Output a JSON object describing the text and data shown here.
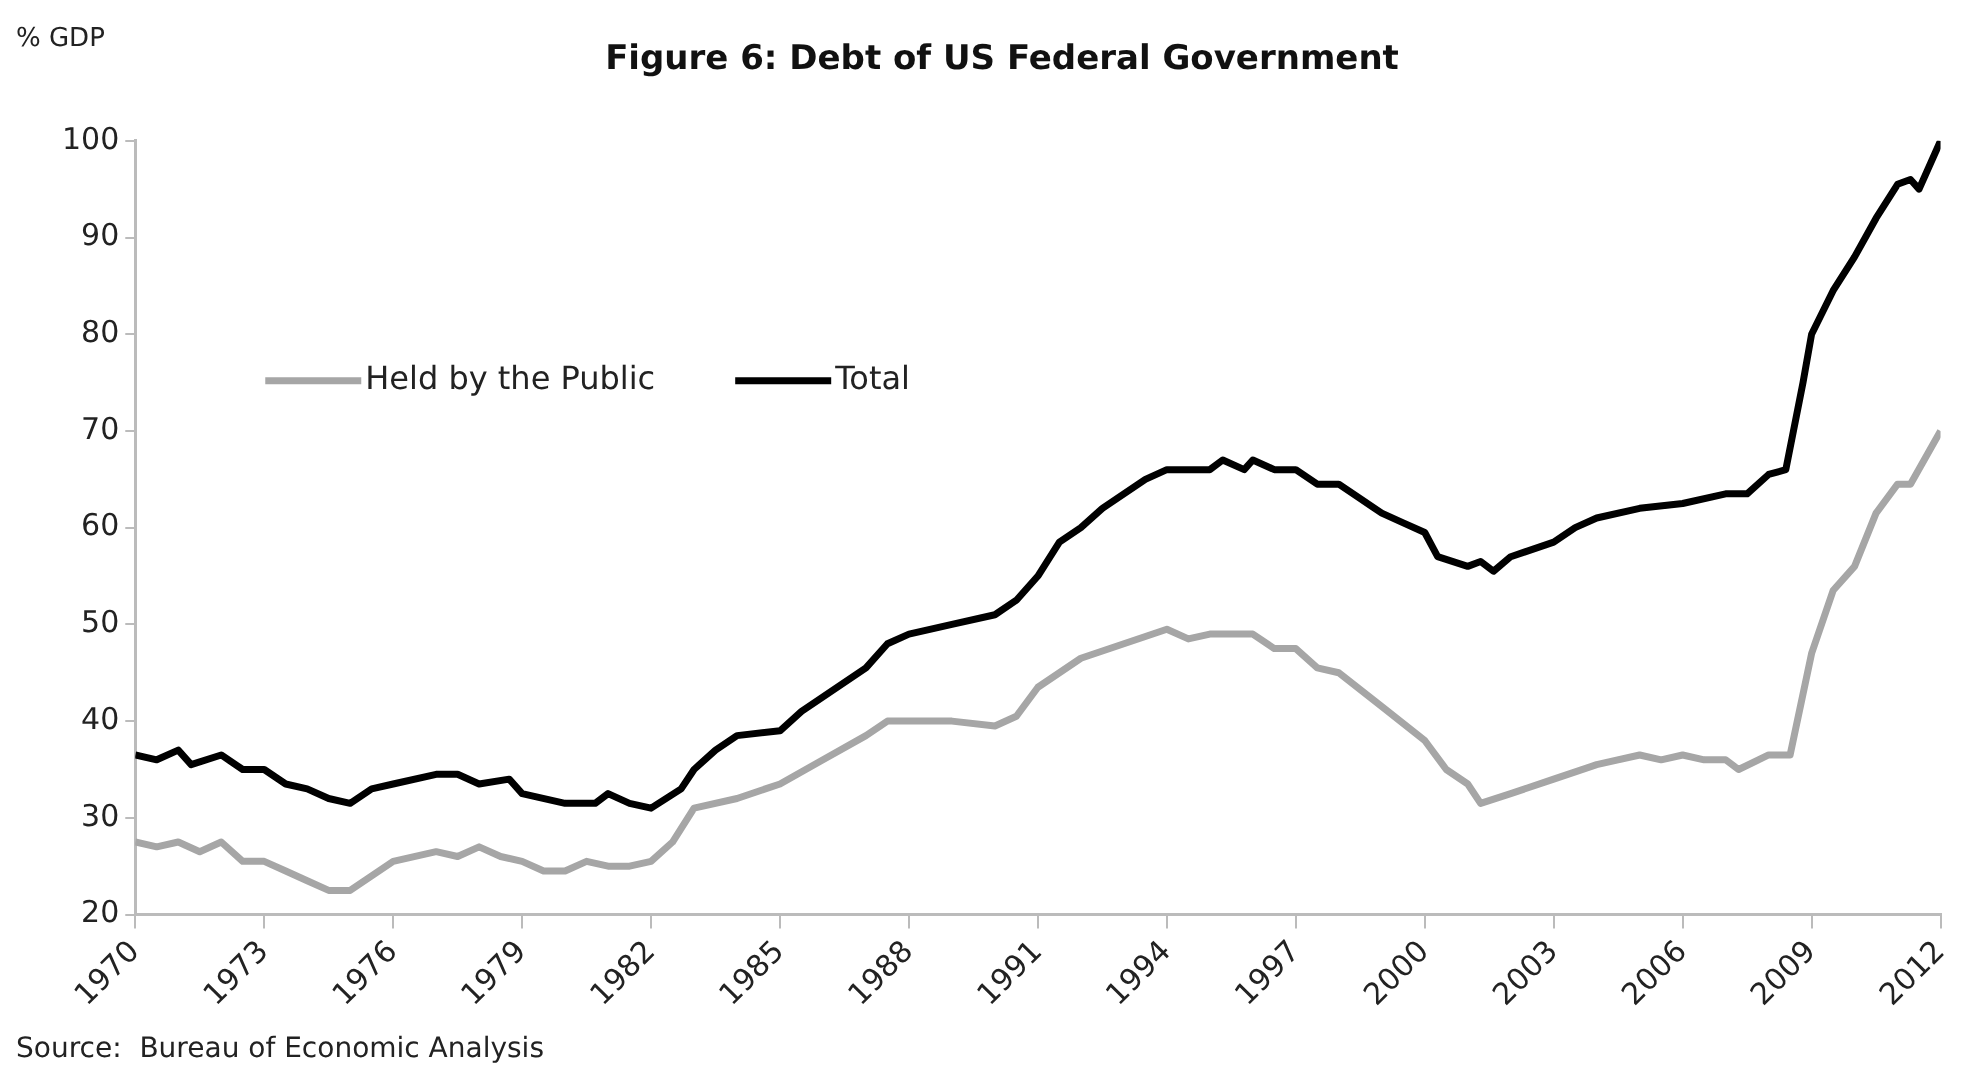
{
  "chart_data": {
    "type": "line",
    "title": "Figure 6: Debt of US Federal Government",
    "ylabel": "% GDP",
    "annotations": [
      "Source:  Bureau of Economic Analysis"
    ],
    "xlim": [
      1970,
      2012
    ],
    "xticks": [
      1970,
      1973,
      1976,
      1979,
      1982,
      1985,
      1988,
      1991,
      1994,
      1997,
      2000,
      2003,
      2006,
      2009,
      2012
    ],
    "ylim": [
      20,
      100
    ],
    "yticks": [
      20,
      30,
      40,
      50,
      60,
      70,
      80,
      90,
      100
    ],
    "grid": false,
    "legend": "top left",
    "marker": "none",
    "line_style": "solid",
    "series": [
      {
        "name": "Held by the Public",
        "color": "#a6a6a6",
        "x": [
          1970,
          1970.5,
          1971,
          1971.5,
          1972,
          1972.5,
          1973,
          1973.5,
          1974,
          1974.5,
          1975,
          1975.5,
          1976,
          1977,
          1977.5,
          1978,
          1978.5,
          1979,
          1979.5,
          1980,
          1980.5,
          1981,
          1981.5,
          1982,
          1982.5,
          1983,
          1984,
          1985,
          1986,
          1987,
          1987.5,
          1988,
          1989,
          1990,
          1990.5,
          1991,
          1992,
          1993,
          1994,
          1994.5,
          1995,
          1996,
          1996.5,
          1997,
          1997.5,
          1998,
          1999,
          2000,
          2000.5,
          2001,
          2001.3,
          2002,
          2003,
          2004,
          2005,
          2005.5,
          2006,
          2006.5,
          2007,
          2007.3,
          2008,
          2008.5,
          2009,
          2009.5,
          2010,
          2010.5,
          2011,
          2011.3,
          2012
        ],
        "values": [
          27.5,
          27,
          27.5,
          26.5,
          27.5,
          25.5,
          25.5,
          24.5,
          23.5,
          22.5,
          22.5,
          24,
          25.5,
          26.5,
          26,
          27,
          26,
          25.5,
          24.5,
          24.5,
          25.5,
          25,
          25,
          25.5,
          27.5,
          31,
          32,
          33.5,
          36,
          38.5,
          40,
          40,
          40,
          39.5,
          40.5,
          43.5,
          46.5,
          48,
          49.5,
          48.5,
          49,
          49,
          47.5,
          47.5,
          45.5,
          45,
          41.5,
          38,
          35,
          33.5,
          31.5,
          32.5,
          34,
          35.5,
          36.5,
          36,
          36.5,
          36,
          36,
          35,
          36.5,
          36.5,
          47,
          53.5,
          56,
          61.5,
          64.5,
          64.5,
          70
        ]
      },
      {
        "name": "Total",
        "color": "#000000",
        "x": [
          1970,
          1970.5,
          1971,
          1971.3,
          1972,
          1972.5,
          1973,
          1973.5,
          1974,
          1974.5,
          1975,
          1975.5,
          1976,
          1977,
          1977.5,
          1978,
          1978.7,
          1979,
          1980,
          1980.7,
          1981,
          1981.5,
          1982,
          1982.7,
          1983,
          1983.5,
          1984,
          1985,
          1985.5,
          1986,
          1987,
          1987.5,
          1988,
          1989,
          1990,
          1990.5,
          1991,
          1991.5,
          1992,
          1992.5,
          1993,
          1993.5,
          1994,
          1995,
          1995.3,
          1995.8,
          1996,
          1996.5,
          1997,
          1997.5,
          1998,
          1998.5,
          1999,
          1999.5,
          2000,
          2000.3,
          2001,
          2001.3,
          2001.6,
          2002,
          2003,
          2003.5,
          2004,
          2005,
          2006,
          2007,
          2007.5,
          2008,
          2008.4,
          2008.8,
          2009,
          2009.5,
          2010,
          2010.5,
          2011,
          2011.3,
          2011.5,
          2012
        ],
        "values": [
          36.5,
          36,
          37,
          35.5,
          36.5,
          35,
          35,
          33.5,
          33,
          32,
          31.5,
          33,
          33.5,
          34.5,
          34.5,
          33.5,
          34,
          32.5,
          31.5,
          31.5,
          32.5,
          31.5,
          31,
          33,
          35,
          37,
          38.5,
          39,
          41,
          42.5,
          45.5,
          48,
          49,
          50,
          51,
          52.5,
          55,
          58.5,
          60,
          62,
          63.5,
          65,
          66,
          66,
          67,
          66,
          67,
          66,
          66,
          64.5,
          64.5,
          63,
          61.5,
          60.5,
          59.5,
          57,
          56,
          56.5,
          55.5,
          57,
          58.5,
          60,
          61,
          62,
          62.5,
          63.5,
          63.5,
          65.5,
          66,
          75,
          80,
          84.5,
          88,
          92,
          95.5,
          96,
          95,
          100
        ]
      }
    ]
  }
}
